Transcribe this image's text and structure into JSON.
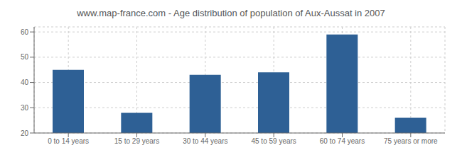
{
  "chart_data": {
    "type": "bar",
    "title": "www.map-france.com - Age distribution of population of Aux-Aussat in 2007",
    "categories": [
      "0 to 14 years",
      "15 to 29 years",
      "30 to 44 years",
      "45 to 59 years",
      "60 to 74 years",
      "75 years or more"
    ],
    "values": [
      45,
      28,
      43,
      44,
      59,
      26
    ],
    "color": "#2e6095",
    "ylim": [
      20,
      62
    ],
    "yticks": [
      20,
      30,
      40,
      50,
      60
    ],
    "grid": true
  }
}
